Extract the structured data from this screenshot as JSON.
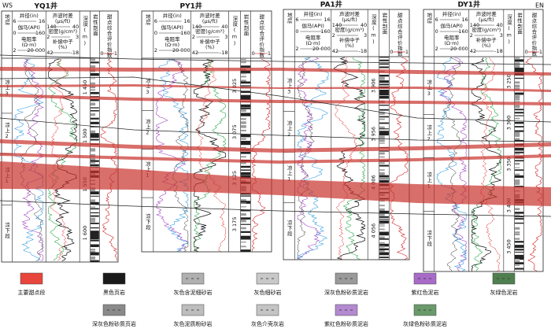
{
  "directions": {
    "left": "WS",
    "right": "EN"
  },
  "header": {
    "stratum": "地层",
    "caliper": "井径(in)",
    "caliper_min": "6",
    "caliper_max": "16",
    "gamma": "伽马(API)",
    "gamma_min": "0",
    "gamma_max": "160",
    "resistivity": "电阻率",
    "resistivity_unit": "(Ω·m)",
    "res_min": "2",
    "res_max": "20 000",
    "sonic": "声波时差",
    "sonic_unit": "(μs/ft)",
    "sonic_min": "140",
    "sonic_max": "40",
    "density": "密度(g/cm³)",
    "den_min": "2",
    "den_max": "3",
    "neutron": "补偿中子",
    "neutron_unit": "(%)",
    "neu_min": "42",
    "neu_max": "-18",
    "depth": "深度(m)",
    "litho": "岩性剖面",
    "sweet": "甜点综合评价指数",
    "sweet_min": "0",
    "sweet_max": "1"
  },
  "strata": [
    "凉上3",
    "凉上2",
    "凉上1",
    "凉下段"
  ],
  "wells": [
    {
      "name": "YQ1井",
      "depths": [
        "1 450",
        "1 500",
        "1 550",
        "1 600"
      ]
    },
    {
      "name": "PY1井",
      "depths": [
        "3 025",
        "3 075",
        "3 125",
        "3 175"
      ]
    },
    {
      "name": "PA1井",
      "depths": [
        "3 906",
        "3 956",
        "4 006",
        "4 056"
      ]
    },
    {
      "name": "DY1井",
      "depths": [
        "3 250",
        "3 300",
        "3 350",
        "3 400",
        "3 450"
      ]
    }
  ],
  "legend": [
    {
      "label": "主要甜点段",
      "color": "#e8453c"
    },
    {
      "label": "黑色页岩",
      "color": "#1a1a1a"
    },
    {
      "label": "灰色含泥细砂岩",
      "color": "#b0b0b0"
    },
    {
      "label": "灰色细砂岩",
      "color": "#c8c8c8"
    },
    {
      "label": "深灰色粉砂质泥岩",
      "color": "#9a9a9a"
    },
    {
      "label": "紫红色泥岩",
      "color": "#a86cc8"
    },
    {
      "label": "灰绿色泥岩",
      "color": "#4f7f4f"
    },
    {
      "label": "深灰色粉砂质页岩",
      "color": "#8a8a8a"
    },
    {
      "label": "灰色泥质粉砂岩",
      "color": "#bdbdbd"
    },
    {
      "label": "灰色介壳灰岩",
      "color": "#c4c4c4"
    },
    {
      "label": "紫红色粉砂质泥岩",
      "color": "#b38ad0"
    },
    {
      "label": "灰绿色粉砂质泥岩",
      "color": "#6a9a6a"
    }
  ]
}
